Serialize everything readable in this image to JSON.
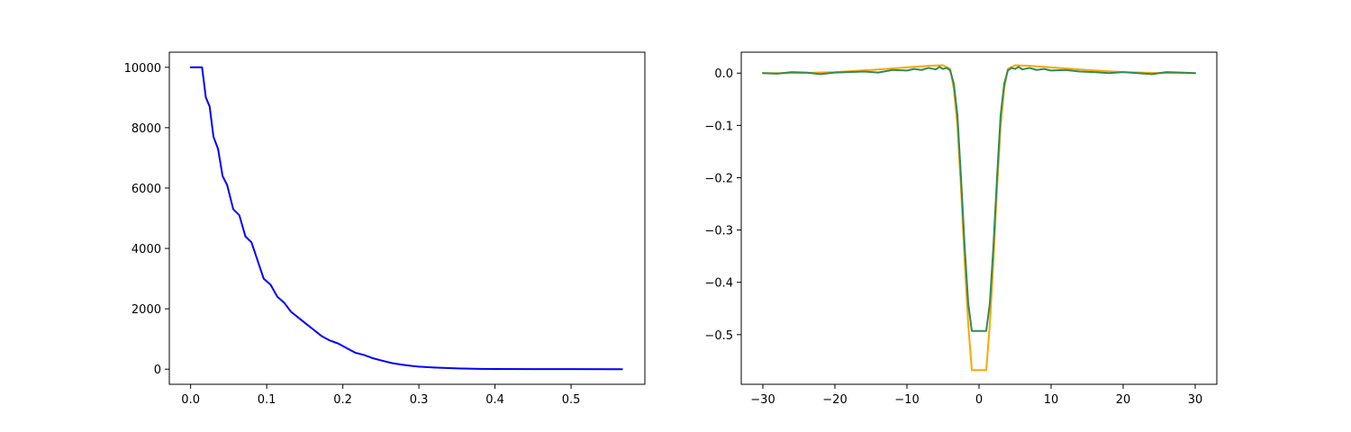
{
  "chart_data": [
    {
      "type": "line",
      "title": "",
      "xlabel": "",
      "ylabel": "",
      "xlim": [
        -0.028,
        0.597
      ],
      "ylim": [
        -500,
        10500
      ],
      "xticks": [
        0.0,
        0.1,
        0.2,
        0.3,
        0.4,
        0.5
      ],
      "xtick_labels": [
        "0.0",
        "0.1",
        "0.2",
        "0.3",
        "0.4",
        "0.5"
      ],
      "yticks": [
        0,
        2000,
        4000,
        6000,
        8000,
        10000
      ],
      "ytick_labels": [
        "0",
        "2000",
        "4000",
        "6000",
        "8000",
        "10000"
      ],
      "grid": false,
      "series": [
        {
          "color": "#0000ff",
          "x": [
            0.0,
            0.015,
            0.02,
            0.025,
            0.03,
            0.036,
            0.042,
            0.048,
            0.056,
            0.064,
            0.072,
            0.08,
            0.088,
            0.096,
            0.105,
            0.114,
            0.123,
            0.132,
            0.142,
            0.152,
            0.162,
            0.172,
            0.183,
            0.194,
            0.205,
            0.216,
            0.228,
            0.24,
            0.252,
            0.265,
            0.278,
            0.29,
            0.3,
            0.31,
            0.32,
            0.34,
            0.36,
            0.38,
            0.4,
            0.45,
            0.5,
            0.567
          ],
          "y": [
            10000,
            10000,
            9000,
            8700,
            7700,
            7300,
            6400,
            6100,
            5300,
            5100,
            4400,
            4200,
            3600,
            3000,
            2800,
            2400,
            2200,
            1900,
            1700,
            1500,
            1300,
            1100,
            950,
            850,
            700,
            550,
            470,
            360,
            280,
            200,
            150,
            110,
            85,
            70,
            55,
            35,
            20,
            12,
            8,
            4,
            2,
            1
          ]
        }
      ]
    },
    {
      "type": "line",
      "title": "",
      "xlabel": "",
      "ylabel": "",
      "xlim": [
        -33,
        33
      ],
      "ylim": [
        -0.595,
        0.04
      ],
      "xticks": [
        -30,
        -20,
        -10,
        0,
        10,
        20,
        30
      ],
      "xtick_labels": [
        "−30",
        "−20",
        "−10",
        "0",
        "10",
        "20",
        "30"
      ],
      "yticks": [
        0.0,
        -0.1,
        -0.2,
        -0.3,
        -0.4,
        -0.5
      ],
      "ytick_labels": [
        "0.0",
        "−0.1",
        "−0.2",
        "−0.3",
        "−0.4",
        "−0.5"
      ],
      "grid": false,
      "series": [
        {
          "color": "#ffa500",
          "x": [
            -30,
            -25,
            -20,
            -15,
            -10,
            -7,
            -5,
            -4,
            -3.5,
            -3,
            -2.5,
            -2,
            -1.5,
            -1,
            1,
            1.5,
            2,
            2.5,
            3,
            3.5,
            4,
            5,
            7,
            10,
            15,
            20,
            25,
            30
          ],
          "y": [
            0.0,
            0.0,
            0.002,
            0.006,
            0.011,
            0.014,
            0.015,
            0.008,
            -0.03,
            -0.1,
            -0.22,
            -0.36,
            -0.48,
            -0.568,
            -0.568,
            -0.48,
            -0.36,
            -0.22,
            -0.1,
            -0.03,
            0.008,
            0.015,
            0.014,
            0.011,
            0.006,
            0.002,
            0.0,
            0.0
          ]
        },
        {
          "color": "#2e8b57",
          "x": [
            -30,
            -28,
            -26,
            -24,
            -22,
            -20,
            -18,
            -16,
            -14,
            -12,
            -10,
            -9,
            -8,
            -7,
            -6,
            -5.5,
            -5,
            -4.5,
            -4,
            -3.5,
            -3,
            -2.5,
            -2,
            -1.5,
            -1,
            1,
            1.5,
            2,
            2.5,
            3,
            3.5,
            4,
            4.5,
            5,
            5.5,
            6,
            7,
            8,
            9,
            10,
            12,
            14,
            16,
            18,
            20,
            22,
            24,
            26,
            28,
            30
          ],
          "y": [
            0.0,
            -0.001,
            0.002,
            0.001,
            -0.002,
            0.001,
            0.002,
            0.003,
            0.001,
            0.006,
            0.005,
            0.008,
            0.006,
            0.01,
            0.007,
            0.012,
            0.008,
            0.01,
            0.005,
            -0.02,
            -0.08,
            -0.2,
            -0.33,
            -0.44,
            -0.493,
            -0.493,
            -0.44,
            -0.33,
            -0.2,
            -0.08,
            -0.02,
            0.005,
            0.01,
            0.008,
            0.012,
            0.007,
            0.01,
            0.006,
            0.008,
            0.005,
            0.006,
            0.003,
            0.002,
            0.0,
            0.002,
            0.0,
            -0.002,
            0.002,
            0.001,
            0.0
          ]
        }
      ]
    }
  ]
}
